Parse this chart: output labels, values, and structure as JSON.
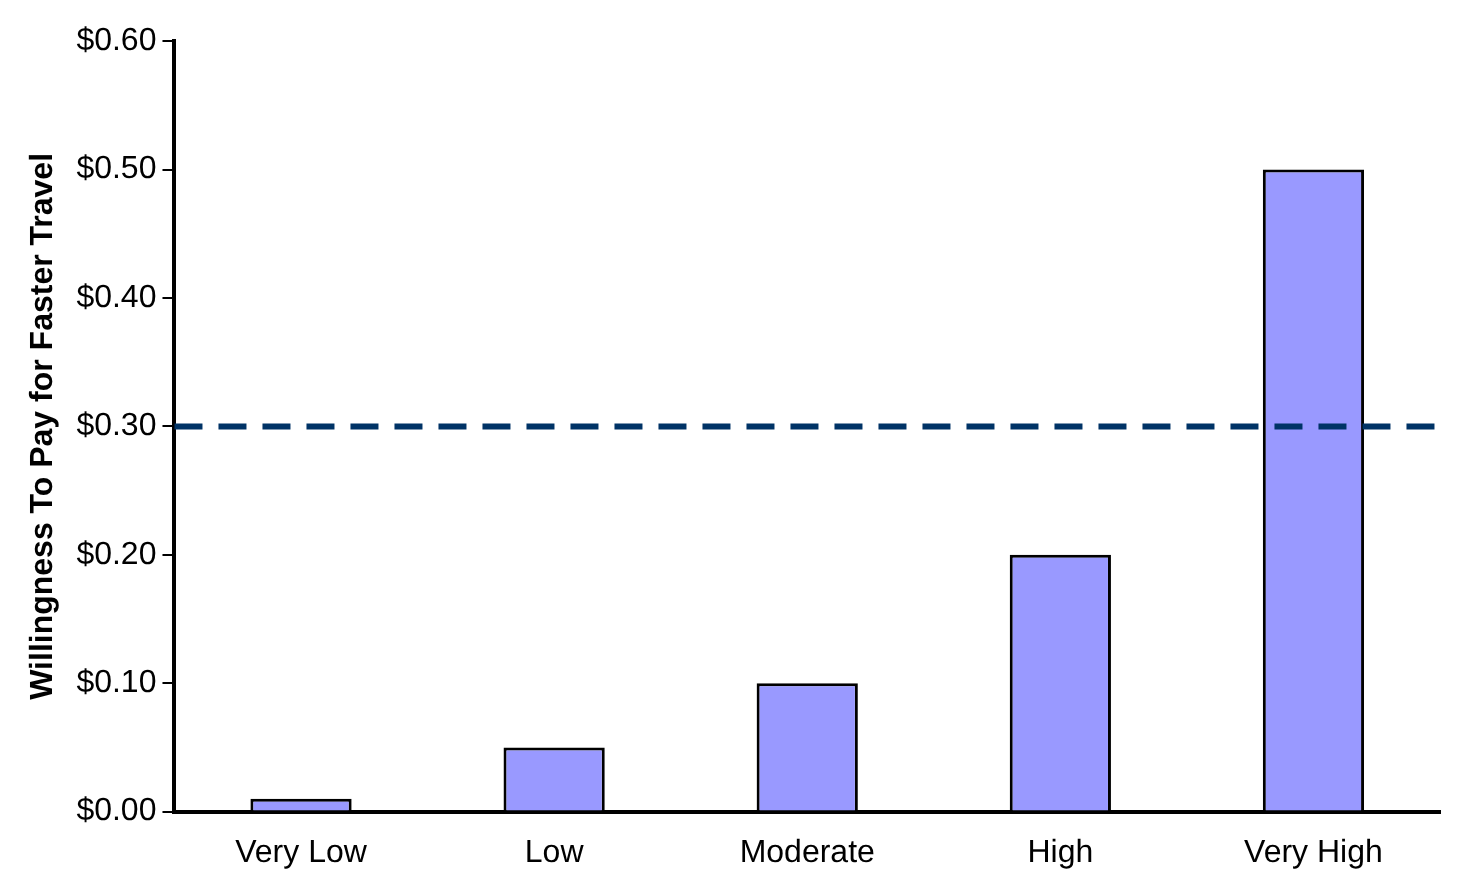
{
  "chart_data": {
    "type": "bar",
    "ylabel": "Willingness To Pay for Faster Travel",
    "categories": [
      "Very Low",
      "Low",
      "Moderate",
      "High",
      "Very High"
    ],
    "values": [
      0.01,
      0.05,
      0.1,
      0.2,
      0.5
    ],
    "color": "#9999ff",
    "ylim": [
      0,
      0.6
    ],
    "yticks": [
      {
        "value": 0,
        "label": "$0.00"
      },
      {
        "value": 0.1,
        "label": "$0.10"
      },
      {
        "value": 0.2,
        "label": "$0.20"
      },
      {
        "value": 0.3,
        "label": "$0.30"
      },
      {
        "value": 0.4,
        "label": "$0.40"
      },
      {
        "value": 0.5,
        "label": "$0.50"
      },
      {
        "value": 0.6,
        "label": "$0.60"
      }
    ],
    "ref_lines": [
      {
        "axis": "y",
        "value": 0.3,
        "color": "#003366",
        "line_style": "dashed"
      }
    ],
    "grid": false,
    "legend": false
  }
}
